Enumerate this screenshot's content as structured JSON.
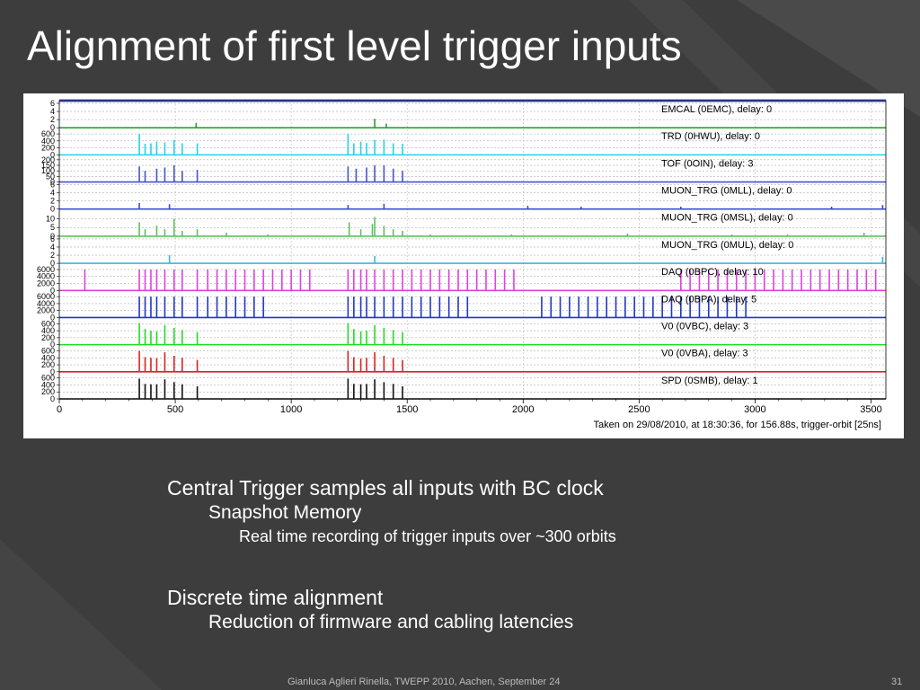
{
  "slide": {
    "title": "Alignment of first level trigger inputs",
    "bullets": {
      "item1": "Central Trigger samples all inputs with BC clock",
      "item1_sub": "Snapshot Memory",
      "item1_subsub": "Real time recording of trigger inputs over ~300 orbits",
      "item2": "Discrete time alignment",
      "item2_sub": "Reduction of firmware and cabling latencies"
    },
    "footer": "Gianluca Aglieri Rinella, TWEPP 2010, Aachen, September 24",
    "page_number": "31"
  },
  "chart_data": {
    "type": "bar",
    "xlim": [
      0,
      3564
    ],
    "x_ticks": [
      "0",
      "500",
      "1000",
      "1500",
      "2000",
      "2500",
      "3000",
      "3500"
    ],
    "note": "Taken on 29/08/2010, at 18:30:36, for 156.88s, trigger-orbit [25ns]",
    "grid": true,
    "panels": [
      {
        "label": "EMCAL (0EMC), delay: 0",
        "color": "#2ca02c",
        "ticks": [
          "0",
          "2",
          "4",
          "6"
        ],
        "ymax": 6,
        "spikes": [
          [
            590,
            1.2
          ],
          [
            1360,
            2.2
          ],
          [
            1410,
            1.0
          ]
        ]
      },
      {
        "label": "TRD (0HWU), delay: 0",
        "color": "#22d3ee",
        "ticks": [
          "0",
          "200",
          "400",
          "600"
        ],
        "ymax": 700,
        "spikes": [
          [
            345,
            600
          ],
          [
            370,
            320
          ],
          [
            395,
            330
          ],
          [
            420,
            380
          ],
          [
            455,
            360
          ],
          [
            495,
            430
          ],
          [
            530,
            330
          ],
          [
            595,
            330
          ],
          [
            1245,
            600
          ],
          [
            1270,
            330
          ],
          [
            1300,
            380
          ],
          [
            1325,
            340
          ],
          [
            1360,
            430
          ],
          [
            1400,
            440
          ],
          [
            1440,
            330
          ],
          [
            1480,
            320
          ]
        ]
      },
      {
        "label": "TOF (0OIN), delay: 3",
        "color": "#4455cc",
        "ticks": [
          "0",
          "50",
          "100",
          "150",
          "200"
        ],
        "ymax": 220,
        "spikes": [
          [
            345,
            140
          ],
          [
            370,
            100
          ],
          [
            420,
            120
          ],
          [
            455,
            130
          ],
          [
            495,
            150
          ],
          [
            530,
            100
          ],
          [
            595,
            110
          ],
          [
            1245,
            140
          ],
          [
            1280,
            120
          ],
          [
            1325,
            130
          ],
          [
            1360,
            150
          ],
          [
            1400,
            150
          ],
          [
            1440,
            120
          ],
          [
            1480,
            100
          ]
        ]
      },
      {
        "label": "MUON_TRG (0MLL), delay: 0",
        "color": "#3b4bd4",
        "ticks": [
          "0",
          "2",
          "4",
          "6"
        ],
        "ymax": 6,
        "spikes": [
          [
            345,
            1.5
          ],
          [
            475,
            1.2
          ],
          [
            1245,
            1.0
          ],
          [
            1400,
            1.3
          ],
          [
            2020,
            0.8
          ],
          [
            2250,
            0.6
          ],
          [
            2680,
            0.6
          ],
          [
            3330,
            0.6
          ],
          [
            3550,
            1.0
          ]
        ]
      },
      {
        "label": "MUON_TRG (0MSL), delay: 0",
        "color": "#59c459",
        "ticks": [
          "0",
          "5",
          "10"
        ],
        "ymax": 14,
        "spikes": [
          [
            345,
            8
          ],
          [
            370,
            4
          ],
          [
            420,
            6
          ],
          [
            455,
            4
          ],
          [
            495,
            10
          ],
          [
            530,
            3
          ],
          [
            595,
            4
          ],
          [
            720,
            2
          ],
          [
            900,
            1
          ],
          [
            1250,
            8
          ],
          [
            1300,
            4
          ],
          [
            1350,
            7
          ],
          [
            1360,
            11
          ],
          [
            1400,
            6
          ],
          [
            1440,
            4
          ],
          [
            1480,
            3
          ],
          [
            1600,
            1
          ],
          [
            1950,
            1
          ],
          [
            2450,
            1.5
          ],
          [
            2900,
            1
          ],
          [
            3140,
            1
          ],
          [
            3470,
            2
          ]
        ]
      },
      {
        "label": "MUON_TRG (0MUL), delay: 0",
        "color": "#39b8d8",
        "ticks": [
          "0",
          "2",
          "4",
          "6"
        ],
        "ymax": 6,
        "spikes": [
          [
            475,
            2
          ],
          [
            1360,
            1.8
          ],
          [
            3550,
            1.6
          ]
        ]
      },
      {
        "label": "DAQ (0BPC), delay: 10",
        "color": "#e040e0",
        "ticks": [
          "0",
          "2000",
          "4000",
          "6000"
        ],
        "ymax": 7000,
        "spikes": [
          [
            110,
            6000
          ],
          [
            345,
            6000
          ],
          [
            370,
            6000
          ],
          [
            395,
            6000
          ],
          [
            420,
            6000
          ],
          [
            455,
            6000
          ],
          [
            495,
            6000
          ],
          [
            530,
            6000
          ],
          [
            595,
            6000
          ],
          [
            640,
            6000
          ],
          [
            680,
            6000
          ],
          [
            720,
            6000
          ],
          [
            760,
            6000
          ],
          [
            800,
            6000
          ],
          [
            840,
            6000
          ],
          [
            880,
            6000
          ],
          [
            920,
            6000
          ],
          [
            960,
            6000
          ],
          [
            1000,
            6000
          ],
          [
            1040,
            6000
          ],
          [
            1080,
            6000
          ],
          [
            1245,
            6000
          ],
          [
            1270,
            6000
          ],
          [
            1300,
            6000
          ],
          [
            1325,
            6000
          ],
          [
            1360,
            6000
          ],
          [
            1400,
            6000
          ],
          [
            1440,
            6000
          ],
          [
            1480,
            6000
          ],
          [
            1520,
            6000
          ],
          [
            1560,
            6000
          ],
          [
            1600,
            6000
          ],
          [
            1640,
            6000
          ],
          [
            1680,
            6000
          ],
          [
            1720,
            6000
          ],
          [
            1760,
            6000
          ],
          [
            1800,
            6000
          ],
          [
            1840,
            6000
          ],
          [
            1880,
            6000
          ],
          [
            1920,
            6000
          ],
          [
            1960,
            6000
          ],
          [
            2680,
            6000
          ],
          [
            2720,
            6000
          ],
          [
            2760,
            6000
          ],
          [
            2800,
            6000
          ],
          [
            2840,
            6000
          ],
          [
            2880,
            6000
          ],
          [
            2920,
            6000
          ],
          [
            2960,
            6000
          ],
          [
            3000,
            6000
          ],
          [
            3040,
            6000
          ],
          [
            3080,
            6000
          ],
          [
            3120,
            6000
          ],
          [
            3160,
            6000
          ],
          [
            3200,
            6000
          ],
          [
            3240,
            6000
          ],
          [
            3280,
            6000
          ],
          [
            3320,
            6000
          ],
          [
            3360,
            6000
          ],
          [
            3400,
            6000
          ],
          [
            3440,
            6000
          ],
          [
            3480,
            6000
          ],
          [
            3520,
            6000
          ]
        ]
      },
      {
        "label": "DAQ (0BPA), delay: 5",
        "color": "#2236c8",
        "ticks": [
          "0",
          "2000",
          "4000",
          "6000"
        ],
        "ymax": 7000,
        "spikes": [
          [
            345,
            6000
          ],
          [
            370,
            6000
          ],
          [
            395,
            6000
          ],
          [
            420,
            6000
          ],
          [
            455,
            6000
          ],
          [
            495,
            6000
          ],
          [
            530,
            6000
          ],
          [
            595,
            6000
          ],
          [
            640,
            6000
          ],
          [
            680,
            6000
          ],
          [
            720,
            6000
          ],
          [
            760,
            6000
          ],
          [
            800,
            6000
          ],
          [
            840,
            6000
          ],
          [
            880,
            6000
          ],
          [
            1245,
            6000
          ],
          [
            1270,
            6000
          ],
          [
            1300,
            6000
          ],
          [
            1325,
            6000
          ],
          [
            1360,
            6000
          ],
          [
            1400,
            6000
          ],
          [
            1440,
            6000
          ],
          [
            1480,
            6000
          ],
          [
            1520,
            6000
          ],
          [
            1560,
            6000
          ],
          [
            1600,
            6000
          ],
          [
            1640,
            6000
          ],
          [
            1680,
            6000
          ],
          [
            1720,
            6000
          ],
          [
            1760,
            6000
          ],
          [
            2080,
            6000
          ],
          [
            2120,
            6000
          ],
          [
            2160,
            6000
          ],
          [
            2200,
            6000
          ],
          [
            2240,
            6000
          ],
          [
            2280,
            6000
          ],
          [
            2320,
            6000
          ],
          [
            2360,
            6000
          ],
          [
            2400,
            6000
          ],
          [
            2440,
            6000
          ],
          [
            2480,
            6000
          ],
          [
            2520,
            6000
          ],
          [
            2560,
            6000
          ],
          [
            2600,
            6000
          ],
          [
            2640,
            6000
          ],
          [
            2680,
            6000
          ],
          [
            2720,
            6000
          ],
          [
            2760,
            6000
          ],
          [
            2800,
            6000
          ],
          [
            2840,
            6000
          ],
          [
            2880,
            6000
          ],
          [
            2920,
            6000
          ],
          [
            2960,
            6000
          ]
        ]
      },
      {
        "label": "V0 (0VBC), delay: 3",
        "color": "#22dd22",
        "ticks": [
          "0",
          "200",
          "400",
          "600"
        ],
        "ymax": 700,
        "spikes": [
          [
            345,
            620
          ],
          [
            370,
            450
          ],
          [
            395,
            400
          ],
          [
            420,
            380
          ],
          [
            455,
            560
          ],
          [
            495,
            480
          ],
          [
            530,
            420
          ],
          [
            595,
            360
          ],
          [
            1245,
            620
          ],
          [
            1270,
            450
          ],
          [
            1300,
            380
          ],
          [
            1325,
            400
          ],
          [
            1360,
            560
          ],
          [
            1400,
            480
          ],
          [
            1440,
            420
          ],
          [
            1480,
            360
          ]
        ]
      },
      {
        "label": "V0 (0VBA), delay: 3",
        "color": "#dd2222",
        "ticks": [
          "0",
          "200",
          "400",
          "600"
        ],
        "ymax": 700,
        "spikes": [
          [
            345,
            600
          ],
          [
            370,
            420
          ],
          [
            395,
            400
          ],
          [
            420,
            390
          ],
          [
            455,
            560
          ],
          [
            495,
            460
          ],
          [
            530,
            400
          ],
          [
            595,
            340
          ],
          [
            1245,
            600
          ],
          [
            1270,
            420
          ],
          [
            1300,
            380
          ],
          [
            1325,
            400
          ],
          [
            1360,
            560
          ],
          [
            1400,
            460
          ],
          [
            1440,
            400
          ],
          [
            1480,
            340
          ]
        ]
      },
      {
        "label": "SPD (0SMB), delay: 1",
        "color": "#111111",
        "ticks": [
          "0",
          "200",
          "400",
          "600"
        ],
        "ymax": 700,
        "spikes": [
          [
            345,
            580
          ],
          [
            370,
            430
          ],
          [
            395,
            420
          ],
          [
            420,
            420
          ],
          [
            455,
            560
          ],
          [
            495,
            480
          ],
          [
            530,
            420
          ],
          [
            595,
            360
          ],
          [
            1245,
            580
          ],
          [
            1270,
            430
          ],
          [
            1300,
            420
          ],
          [
            1325,
            430
          ],
          [
            1360,
            560
          ],
          [
            1400,
            480
          ],
          [
            1440,
            430
          ],
          [
            1480,
            360
          ]
        ]
      }
    ]
  }
}
